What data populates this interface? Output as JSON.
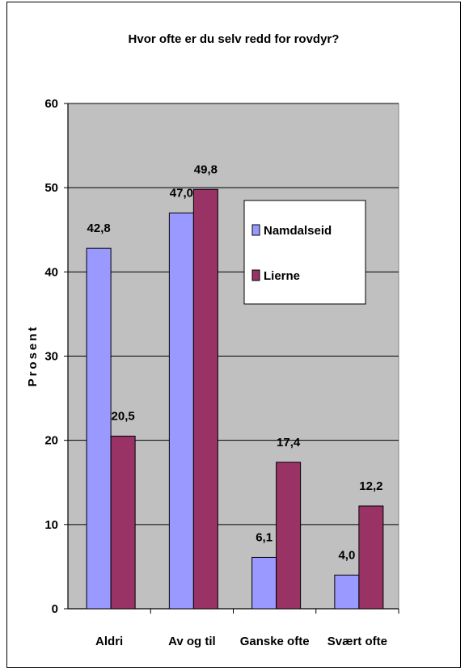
{
  "chart_data": {
    "type": "bar",
    "title": "Hvor ofte er du selv redd for rovdyr?",
    "xlabel": "",
    "ylabel": "Prosent",
    "ylim": [
      0,
      60
    ],
    "yticks": [
      "0",
      "10",
      "20",
      "30",
      "40",
      "50",
      "60"
    ],
    "categories": [
      "Aldri",
      "Av og til",
      "Ganske ofte",
      "Svært ofte"
    ],
    "series": [
      {
        "name": "Namdalseid",
        "color": "#9999FF",
        "values": [
          42.8,
          47.0,
          6.1,
          4.0
        ],
        "labels": [
          "42,8",
          "47,0",
          "6,1",
          "4,0"
        ]
      },
      {
        "name": "Lierne",
        "color": "#993366",
        "values": [
          20.5,
          49.8,
          17.4,
          12.2
        ],
        "labels": [
          "20,5",
          "49,8",
          "17,4",
          "12,2"
        ]
      }
    ],
    "grid": true,
    "plot_background": "#C0C0C0",
    "legend_position": "inside-right"
  }
}
